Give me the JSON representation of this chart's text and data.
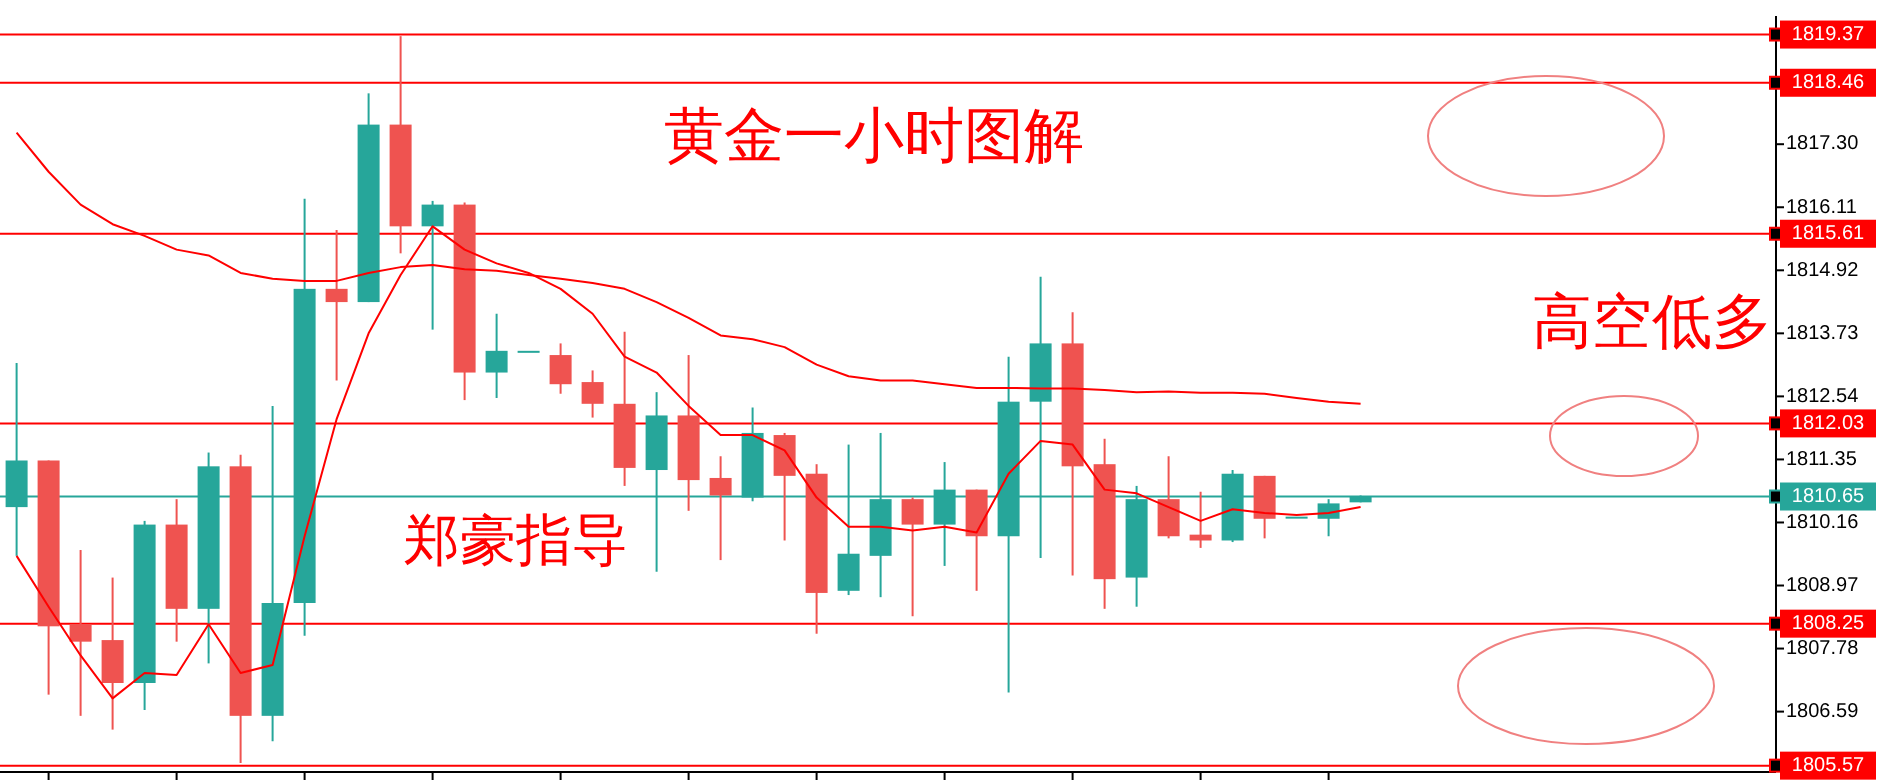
{
  "chart_data": {
    "type": "candlestick",
    "categories": [
      null,
      null,
      null,
      null,
      null,
      null,
      null,
      null,
      null,
      null,
      null,
      null,
      null,
      null,
      null,
      null,
      null,
      null,
      null,
      null,
      null,
      null,
      null,
      null,
      null,
      null,
      null,
      null,
      null,
      null,
      null,
      null,
      null,
      null,
      null,
      null,
      null,
      null,
      null,
      null,
      null,
      null,
      null
    ],
    "ohlc": [
      [
        1810.45,
        1813.17,
        1809.53,
        1811.33
      ],
      [
        1811.33,
        1811.33,
        1806.91,
        1808.2
      ],
      [
        1808.24,
        1809.64,
        1806.51,
        1807.91
      ],
      [
        1807.94,
        1809.12,
        1806.25,
        1807.13
      ],
      [
        1807.13,
        1810.19,
        1806.62,
        1810.12
      ],
      [
        1810.12,
        1810.6,
        1807.91,
        1808.53
      ],
      [
        1808.53,
        1811.48,
        1807.5,
        1811.22
      ],
      [
        1811.22,
        1811.44,
        1805.62,
        1806.51
      ],
      [
        1806.51,
        1812.36,
        1806.03,
        1808.64
      ],
      [
        1808.64,
        1816.27,
        1808.02,
        1814.57
      ],
      [
        1814.57,
        1815.68,
        1812.84,
        1814.32
      ],
      [
        1814.32,
        1818.26,
        1814.32,
        1817.67
      ],
      [
        1817.67,
        1819.34,
        1815.24,
        1815.75
      ],
      [
        1815.75,
        1816.23,
        1813.8,
        1816.16
      ],
      [
        1816.16,
        1816.2,
        1812.47,
        1812.99
      ],
      [
        1812.99,
        1814.1,
        1812.51,
        1813.4
      ],
      [
        1813.4,
        1813.4,
        1813.4,
        1813.4
      ],
      [
        1813.32,
        1813.54,
        1812.59,
        1812.77
      ],
      [
        1812.81,
        1813.03,
        1812.14,
        1812.4
      ],
      [
        1812.4,
        1813.76,
        1810.85,
        1811.19
      ],
      [
        1811.15,
        1812.62,
        1809.23,
        1812.18
      ],
      [
        1812.18,
        1813.32,
        1810.38,
        1810.96
      ],
      [
        1811.0,
        1811.41,
        1809.45,
        1810.67
      ],
      [
        1810.63,
        1812.33,
        1810.56,
        1811.85
      ],
      [
        1811.81,
        1811.85,
        1809.82,
        1811.04
      ],
      [
        1811.08,
        1811.26,
        1808.06,
        1808.83
      ],
      [
        1808.87,
        1811.63,
        1808.79,
        1809.57
      ],
      [
        1809.53,
        1811.85,
        1808.75,
        1810.6
      ],
      [
        1810.6,
        1810.63,
        1808.39,
        1810.12
      ],
      [
        1810.12,
        1811.3,
        1809.34,
        1810.78
      ],
      [
        1810.78,
        1810.78,
        1808.87,
        1809.9
      ],
      [
        1809.9,
        1813.29,
        1806.95,
        1812.44
      ],
      [
        1812.44,
        1814.8,
        1809.49,
        1813.54
      ],
      [
        1813.54,
        1814.13,
        1809.16,
        1811.22
      ],
      [
        1811.26,
        1811.74,
        1808.53,
        1809.09
      ],
      [
        1809.12,
        1810.85,
        1808.57,
        1810.6
      ],
      [
        1810.6,
        1811.41,
        1809.86,
        1809.9
      ],
      [
        1809.93,
        1810.74,
        1809.68,
        1809.82
      ],
      [
        1809.82,
        1811.15,
        1809.79,
        1811.08
      ],
      [
        1811.04,
        1811.04,
        1809.86,
        1810.23
      ],
      [
        1810.27,
        1810.27,
        1810.27,
        1810.27
      ],
      [
        1810.23,
        1810.6,
        1809.9,
        1810.52
      ],
      [
        1810.54,
        1810.67,
        1810.54,
        1810.65
      ]
    ],
    "colors": [
      "#26a69a",
      "#ef5350",
      "#ef5350",
      "#ef5350",
      "#26a69a",
      "#ef5350",
      "#26a69a",
      "#ef5350",
      "#26a69a",
      "#26a69a",
      "#ef5350",
      "#26a69a",
      "#ef5350",
      "#26a69a",
      "#ef5350",
      "#26a69a",
      "#26a69a",
      "#ef5350",
      "#ef5350",
      "#ef5350",
      "#26a69a",
      "#ef5350",
      "#ef5350",
      "#26a69a",
      "#ef5350",
      "#ef5350",
      "#26a69a",
      "#26a69a",
      "#ef5350",
      "#26a69a",
      "#ef5350",
      "#26a69a",
      "#26a69a",
      "#ef5350",
      "#ef5350",
      "#26a69a",
      "#ef5350",
      "#ef5350",
      "#26a69a",
      "#ef5350",
      "#26a69a",
      "#26a69a",
      "#26a69a"
    ],
    "series": [
      {
        "type": "line",
        "color": "#ff0000",
        "values": [
          1809.53,
          1808.57,
          1807.65,
          1806.84,
          1807.32,
          1807.28,
          1808.24,
          1807.32,
          1807.47,
          1809.9,
          1812.11,
          1813.73,
          1814.83,
          1815.75,
          1815.31,
          1815.05,
          1814.87,
          1814.57,
          1814.1,
          1813.29,
          1812.99,
          1812.36,
          1811.81,
          1811.81,
          1811.52,
          1810.63,
          1810.08,
          1810.08,
          1810.01,
          1810.08,
          1809.97,
          1811.08,
          1811.7,
          1811.63,
          1810.78,
          1810.71,
          1810.45,
          1810.19,
          1810.41,
          1810.34,
          1810.3,
          1810.34,
          1810.45
        ]
      },
      {
        "type": "line",
        "color": "#ff0000",
        "values": [
          1817.52,
          1816.78,
          1816.16,
          1815.79,
          1815.57,
          1815.31,
          1815.2,
          1814.87,
          1814.76,
          1814.72,
          1814.72,
          1814.87,
          1814.98,
          1815.02,
          1814.94,
          1814.91,
          1814.83,
          1814.76,
          1814.68,
          1814.57,
          1814.32,
          1814.02,
          1813.69,
          1813.62,
          1813.47,
          1813.14,
          1812.92,
          1812.84,
          1812.84,
          1812.77,
          1812.7,
          1812.7,
          1812.69,
          1812.69,
          1812.66,
          1812.62,
          1812.63,
          1812.61,
          1812.61,
          1812.59,
          1812.51,
          1812.44,
          1812.4
        ]
      }
    ],
    "ylim": [
      1805.45,
      1819.72
    ],
    "yticks": [
      {
        "value": 1817.3,
        "label": "1817.30"
      },
      1816.11,
      1814.92,
      1813.73,
      1812.54,
      1811.35,
      1810.16,
      1808.97,
      1807.78,
      1806.59
    ],
    "ref_lines": [
      {
        "axis": "y",
        "value": 1819.37,
        "label": "1819.37",
        "color": "#ff0000"
      },
      {
        "axis": "y",
        "value": 1818.46,
        "label": "1818.46",
        "color": "#ff0000"
      },
      {
        "axis": "y",
        "value": 1815.61,
        "label": "1815.61",
        "color": "#ff0000"
      },
      {
        "axis": "y",
        "value": 1812.03,
        "label": "1812.03",
        "color": "#ff0000"
      },
      {
        "axis": "y",
        "value": 1810.65,
        "label": "1810.65",
        "color": "#26a69a"
      },
      {
        "axis": "y",
        "value": 1808.25,
        "label": "1808.25",
        "color": "#ff0000"
      },
      {
        "axis": "y",
        "value": 1805.57,
        "label": "1805.57",
        "color": "#ff0000"
      }
    ],
    "annotations": [
      "黄金一小时图解",
      "高空低多",
      "郑豪指导"
    ],
    "tick_labels": "y",
    "grid": false
  }
}
